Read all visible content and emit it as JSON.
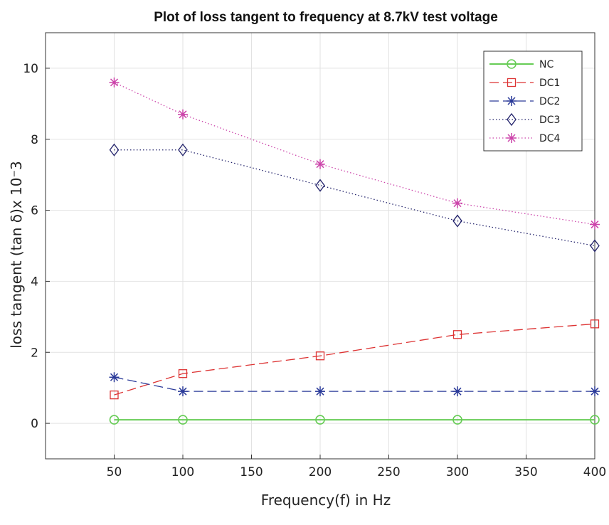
{
  "chart_data": {
    "type": "line",
    "title": "Plot of loss tangent to frequency at 8.7kV test voltage",
    "xlabel": "Frequency(f) in Hz",
    "ylabel": "loss tangent (tan δ)x 10⁻3",
    "xlim": [
      0,
      400
    ],
    "ylim": [
      -1,
      11
    ],
    "x_ticks": [
      50,
      100,
      150,
      200,
      250,
      300,
      350,
      400
    ],
    "y_ticks": [
      0,
      2,
      4,
      6,
      8,
      10
    ],
    "grid": true,
    "legend_position": "top-right",
    "x": [
      50,
      100,
      200,
      300,
      400
    ],
    "series": [
      {
        "name": "NC",
        "values": [
          0.1,
          0.1,
          0.1,
          0.1,
          0.1
        ],
        "color": "#66cc55",
        "marker": "circle",
        "dash": "solid"
      },
      {
        "name": "DC1",
        "values": [
          0.8,
          1.4,
          1.9,
          2.5,
          2.8
        ],
        "color": "#dd3333",
        "marker": "square",
        "dash": "dashed"
      },
      {
        "name": "DC2",
        "values": [
          1.3,
          0.9,
          0.9,
          0.9,
          0.9
        ],
        "color": "#2a3a99",
        "marker": "asterisk",
        "dash": "dashed"
      },
      {
        "name": "DC3",
        "values": [
          7.7,
          7.7,
          6.7,
          5.7,
          5.0
        ],
        "color": "#22226b",
        "marker": "diamond",
        "dash": "dotted"
      },
      {
        "name": "DC4",
        "values": [
          9.6,
          8.7,
          7.3,
          6.2,
          5.6
        ],
        "color": "#cc44aa",
        "marker": "asterisk",
        "dash": "dotted"
      }
    ]
  }
}
